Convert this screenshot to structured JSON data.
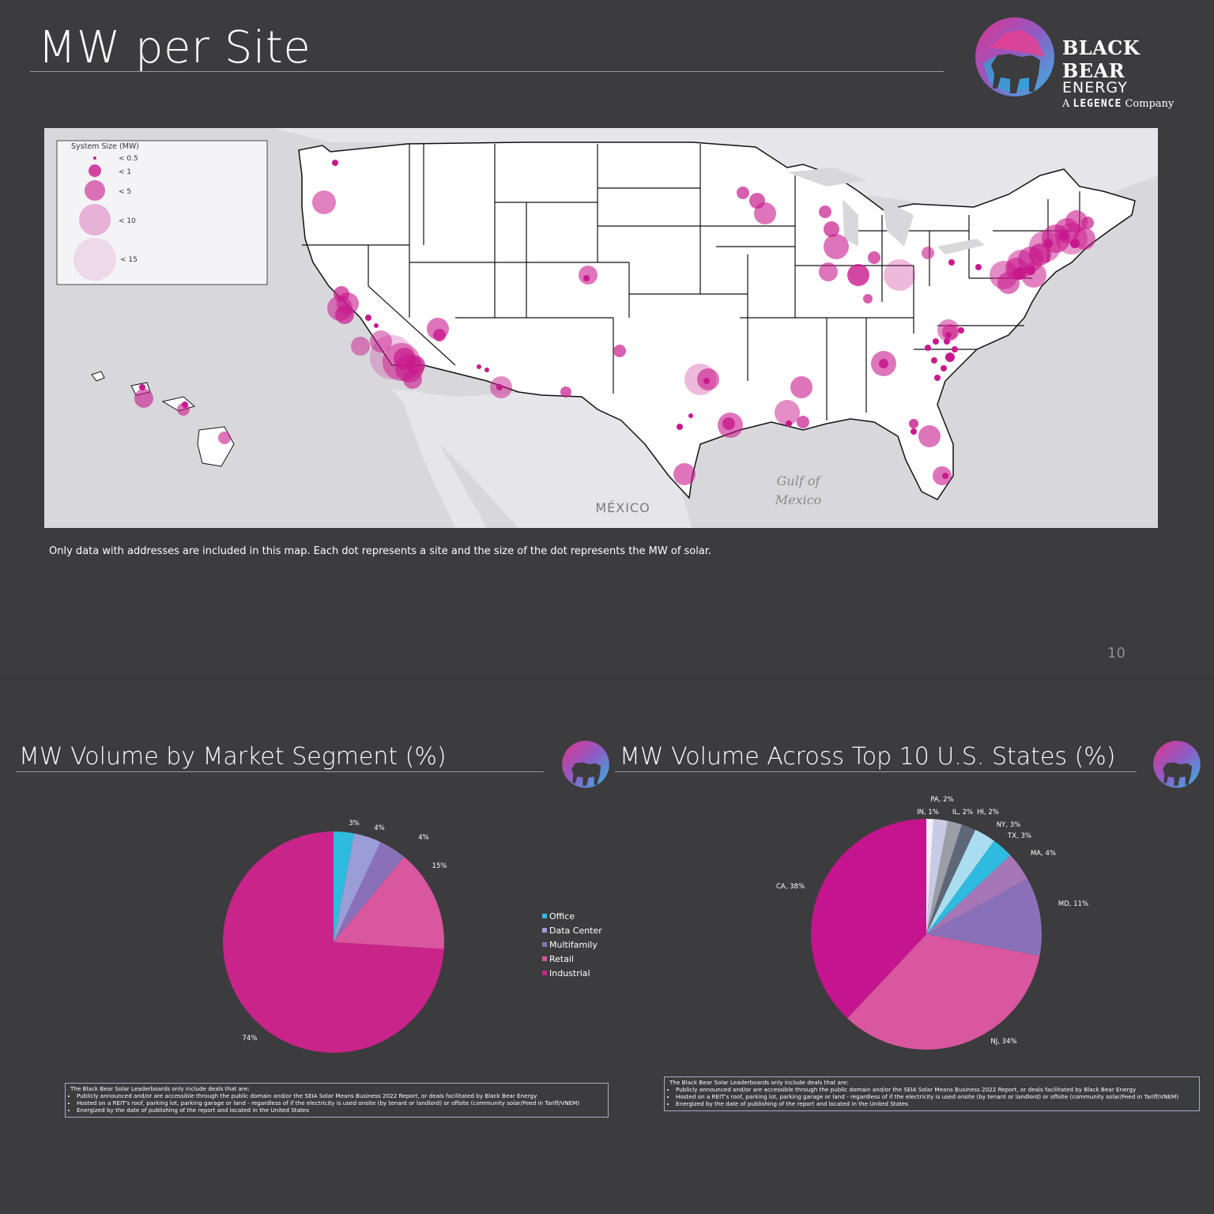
{
  "slide_title": "MW per Site",
  "brand": {
    "line1": "BLACK BEAR",
    "line2": "ENERGY",
    "line3_prefix": "A",
    "line3_name": "LEGENCE",
    "line3_suffix": "Company"
  },
  "map": {
    "legend_title": "System Size (MW)",
    "legend_items": [
      "< 0.5",
      "< 1",
      "< 5",
      "< 10",
      "< 15"
    ],
    "label_mexico": "MÉXICO",
    "label_gulf_1": "Gulf of",
    "label_gulf_2": "Mexico",
    "caption": "Only data with addresses are included in this map. Each dot represents a site and the size of the dot represents the MW of solar.",
    "dot_color": "#c8198c"
  },
  "page_number": "10",
  "segment_chart": {
    "title": "MW Volume by Market Segment (%)",
    "chart_data": {
      "type": "pie",
      "categories": [
        "Office",
        "Data Center",
        "Multifamily",
        "Retail",
        "Industrial"
      ],
      "values": [
        3,
        4,
        4,
        15,
        74
      ],
      "labels": [
        "3%",
        "4%",
        "4%",
        "15%",
        "74%"
      ],
      "colors": [
        "#2fbadf",
        "#9b9ed6",
        "#8a70b8",
        "#d9579e",
        "#c8248a"
      ],
      "legend": "right"
    },
    "note_intro": "The Black Bear Solar Leaderboards only include deals that are:",
    "note_items": [
      "Publicly announced and/or are accessible through the public domain and/or the SEIA Solar Means Business 2022 Report, or deals facilitated by Black Bear Energy",
      "Hosted on a REIT's roof, parking lot, parking garage or land - regardless of if the electricity is used onsite (by tenant or landlord) or offsite (community solar/Feed in Tariff/VNEM)",
      "Energized by the date of publishing of the report and located in the United States"
    ]
  },
  "states_chart": {
    "title": "MW Volume Across Top 10 U.S. States (%)",
    "chart_data": {
      "type": "pie",
      "categories": [
        "IN",
        "PA",
        "IL",
        "HI",
        "NY",
        "TX",
        "MA",
        "MD",
        "NJ",
        "CA"
      ],
      "values": [
        1,
        2,
        2,
        2,
        3,
        3,
        4,
        11,
        34,
        38
      ],
      "labels": [
        "IN, 1%",
        "PA, 2%",
        "IL, 2%",
        "HI, 2%",
        "NY, 3%",
        "TX, 3%",
        "MA, 4%",
        "MD, 11%",
        "NJ, 34%",
        "CA, 38%"
      ],
      "colors": [
        "#f2f2f6",
        "#c9cbe6",
        "#9b9ea6",
        "#5e6778",
        "#a9ddef",
        "#2fbadf",
        "#a676b6",
        "#8a70b8",
        "#d9579e",
        "#c4148e"
      ]
    },
    "note_intro": "The Black Bear Solar Leaderboards only include deals that are:",
    "note_items": [
      "Publicly announced and/or are accessible through the public domain and/or the SEIA Solar Means Business 2022 Report, or deals facilitated by Black Bear Energy",
      "Hosted on a REIT's roof, parking lot, parking garage or land - regardless of if the electricity is used onsite (by tenant or landlord) or offsite (community solar/Feed in Tariff/VNEM)",
      "Energized by the date of publishing of the report and located in the United States"
    ]
  }
}
